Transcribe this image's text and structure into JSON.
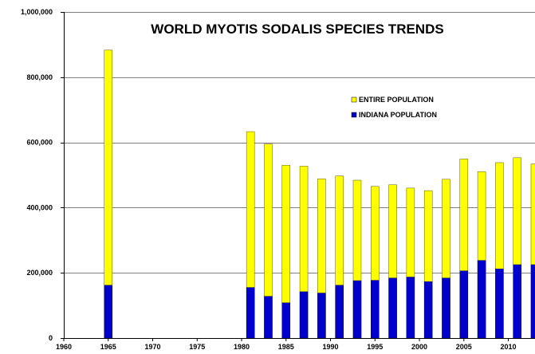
{
  "chart_data": {
    "type": "bar",
    "stacked": false,
    "title": "WORLD MYOTIS SODALIS SPECIES TRENDS",
    "xlabel": "",
    "ylabel": "",
    "xlim": [
      1960,
      2013
    ],
    "ylim": [
      0,
      1000000
    ],
    "x_ticks": [
      1960,
      1965,
      1970,
      1975,
      1980,
      1985,
      1990,
      1995,
      2000,
      2005,
      2010
    ],
    "y_ticks": [
      "0",
      "200,000",
      "400,000",
      "600,000",
      "800,000",
      "1,000,000"
    ],
    "y_tick_values": [
      0,
      200000,
      400000,
      600000,
      800000,
      1000000
    ],
    "grid": true,
    "legend_position": "upper-right",
    "x": [
      1965,
      1981,
      1983,
      1985,
      1987,
      1989,
      1991,
      1993,
      1995,
      1997,
      1999,
      2001,
      2003,
      2005,
      2007,
      2009,
      2011,
      2013
    ],
    "series": [
      {
        "name": "ENTIRE POPULATION",
        "color": "#ffff00",
        "values": [
          883000,
          633000,
          595000,
          530000,
          527000,
          488000,
          497000,
          484000,
          465000,
          470000,
          460000,
          452000,
          487000,
          549000,
          510000,
          538000,
          553000,
          534000
        ]
      },
      {
        "name": "INDIANA POPULATION",
        "color": "#0000cc",
        "values": [
          162000,
          155000,
          128000,
          108000,
          142000,
          138000,
          162000,
          176000,
          177000,
          184000,
          187000,
          173000,
          184000,
          206000,
          238000,
          212000,
          225000,
          225000
        ]
      }
    ]
  }
}
